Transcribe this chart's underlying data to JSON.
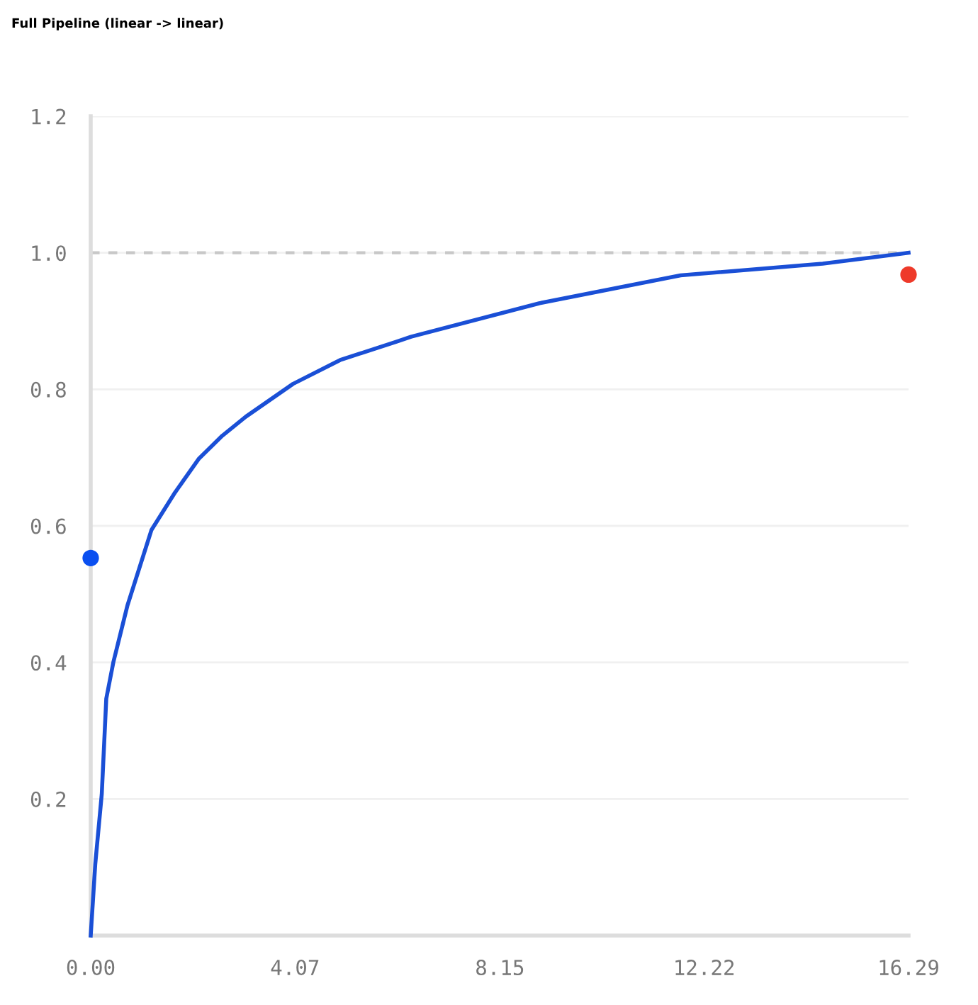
{
  "chart_data": {
    "type": "line",
    "title": "Full Pipeline (linear -> linear)",
    "xlim": [
      0,
      16.29
    ],
    "xticks": [
      {
        "value": 0,
        "label": "0.00"
      },
      4.07,
      8.15,
      12.22,
      16.29
    ],
    "ylim": [
      0,
      1.2
    ],
    "yticks": [
      {
        "value": 0,
        "label": null
      },
      0.2,
      0.4,
      0.6,
      0.8,
      {
        "value": 1.0,
        "label": "1.0"
      },
      1.2
    ],
    "grid": "y",
    "legend": false,
    "ref_lines": [
      {
        "axis": "y",
        "value": 1.0,
        "color": "#c8c8c8",
        "line_style": "dashed"
      }
    ],
    "series": [
      {
        "color": "#1a4fd6",
        "marker": "none",
        "x": [
          0,
          0.09,
          0.22,
          0.31,
          0.45,
          0.73,
          1.21,
          1.68,
          2.15,
          2.62,
          3.09,
          4.03,
          4.97,
          6.1,
          6.38,
          8.93,
          11.75,
          14.58,
          16.29
        ],
        "values": [
          0,
          0.104,
          0.207,
          0.347,
          0.4,
          0.483,
          0.594,
          0.649,
          0.698,
          0.732,
          0.76,
          0.808,
          0.843,
          0.87,
          0.877,
          0.926,
          0.967,
          0.984,
          1.0
        ]
      },
      {
        "type": "scatter",
        "color": "#0a4ff0",
        "marker": "circle",
        "x": [
          0
        ],
        "values": [
          0.553
        ]
      },
      {
        "type": "scatter",
        "color": "#ee3a2a",
        "marker": "circle",
        "x": [
          16.29
        ],
        "values": [
          0.968
        ]
      }
    ]
  }
}
